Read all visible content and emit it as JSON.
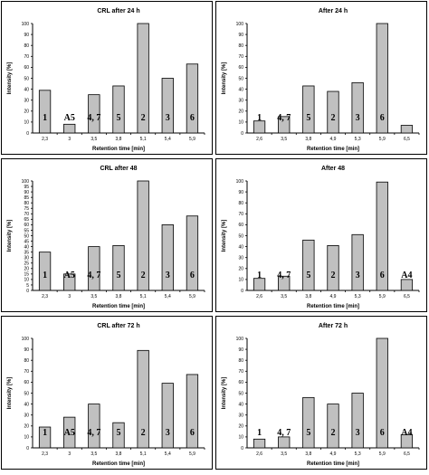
{
  "chart_data": [
    {
      "type": "bar",
      "title": "CRL after 24 h",
      "xlabel": "Retention time [min]",
      "ylabel": "Intensity [%]",
      "ylim": [
        0,
        100
      ],
      "yticks": [
        "0",
        "10",
        "20",
        "30",
        "40",
        "50",
        "60",
        "70",
        "80",
        "90",
        "100"
      ],
      "categories": [
        "2,3",
        "3",
        "3,5",
        "3,8",
        "5,1",
        "5,4",
        "5,9"
      ],
      "values": [
        39,
        8,
        35,
        43,
        100,
        50,
        63
      ],
      "bar_labels": [
        "1",
        "A5",
        "4, 7",
        "5",
        "2",
        "3",
        "6"
      ],
      "grid": false
    },
    {
      "type": "bar",
      "title": "After 24 h",
      "xlabel": "Retention time [min]",
      "ylabel": "Intensity [%]",
      "ylim": [
        0,
        100
      ],
      "yticks": [
        "0",
        "10",
        "20",
        "30",
        "40",
        "50",
        "60",
        "70",
        "80",
        "90",
        "100"
      ],
      "categories": [
        "2,6",
        "3,5",
        "3,8",
        "4,9",
        "5,3",
        "5,9",
        "6,5"
      ],
      "values": [
        11,
        15,
        43,
        38,
        46,
        100,
        7
      ],
      "bar_labels": [
        "1",
        "4, 7",
        "5",
        "2",
        "3",
        "6",
        ""
      ],
      "grid": false
    },
    {
      "type": "bar",
      "title": "CRL after 48",
      "xlabel": "Retention time [min]",
      "ylabel": "Intensity [%]",
      "ylim": [
        0,
        100
      ],
      "yticks": [
        "0",
        "5",
        "10",
        "15",
        "20",
        "25",
        "30",
        "35",
        "40",
        "45",
        "50",
        "55",
        "60",
        "65",
        "70",
        "75",
        "80",
        "85",
        "90",
        "95",
        "100"
      ],
      "categories": [
        "2,3",
        "3",
        "3,5",
        "3,8",
        "5,1",
        "5,4",
        "5,9"
      ],
      "values": [
        35,
        15,
        40,
        41,
        100,
        60,
        68
      ],
      "bar_labels": [
        "1",
        "A5",
        "4, 7",
        "5",
        "2",
        "3",
        "6"
      ],
      "grid": false
    },
    {
      "type": "bar",
      "title": "After 48",
      "xlabel": "Retention time [min]",
      "ylabel": "Intensity [%]",
      "ylim": [
        0,
        100
      ],
      "yticks": [
        "0",
        "10",
        "20",
        "30",
        "40",
        "50",
        "60",
        "70",
        "80",
        "90",
        "100"
      ],
      "categories": [
        "2,6",
        "3,5",
        "3,8",
        "4,9",
        "5,3",
        "5,9",
        "6,5"
      ],
      "values": [
        11,
        13,
        46,
        41,
        51,
        99,
        10
      ],
      "bar_labels": [
        "1",
        "4, 7",
        "5",
        "2",
        "3",
        "6",
        "A4"
      ],
      "grid": false
    },
    {
      "type": "bar",
      "title": "CRL after 72 h",
      "xlabel": "Retention time [min]",
      "ylabel": "Intensity [%]",
      "ylim": [
        0,
        100
      ],
      "yticks": [
        "0",
        "10",
        "20",
        "30",
        "40",
        "50",
        "60",
        "70",
        "80",
        "90",
        "100"
      ],
      "categories": [
        "2,3",
        "3",
        "3,5",
        "3,8",
        "5,1",
        "5,4",
        "5,9"
      ],
      "values": [
        19,
        28,
        40,
        23,
        89,
        59,
        67
      ],
      "bar_labels": [
        "1",
        "A5",
        "4, 7",
        "5",
        "2",
        "3",
        "6"
      ],
      "grid": false
    },
    {
      "type": "bar",
      "title": "After 72 h",
      "xlabel": "Retention time [min]",
      "ylabel": "Intensity [%]",
      "ylim": [
        0,
        100
      ],
      "yticks": [
        "0",
        "10",
        "20",
        "30",
        "40",
        "50",
        "60",
        "70",
        "80",
        "90",
        "100"
      ],
      "categories": [
        "2,6",
        "3,5",
        "3,8",
        "4,9",
        "5,3",
        "5,9",
        "6,5"
      ],
      "values": [
        8,
        10,
        46,
        40,
        50,
        100,
        12
      ],
      "bar_labels": [
        "1",
        "4, 7",
        "5",
        "2",
        "3",
        "6",
        "A4"
      ],
      "grid": false
    }
  ],
  "colors": {
    "bar_fill": "#c0c0c0",
    "bar_stroke": "#000000",
    "background": "#ffffff"
  }
}
